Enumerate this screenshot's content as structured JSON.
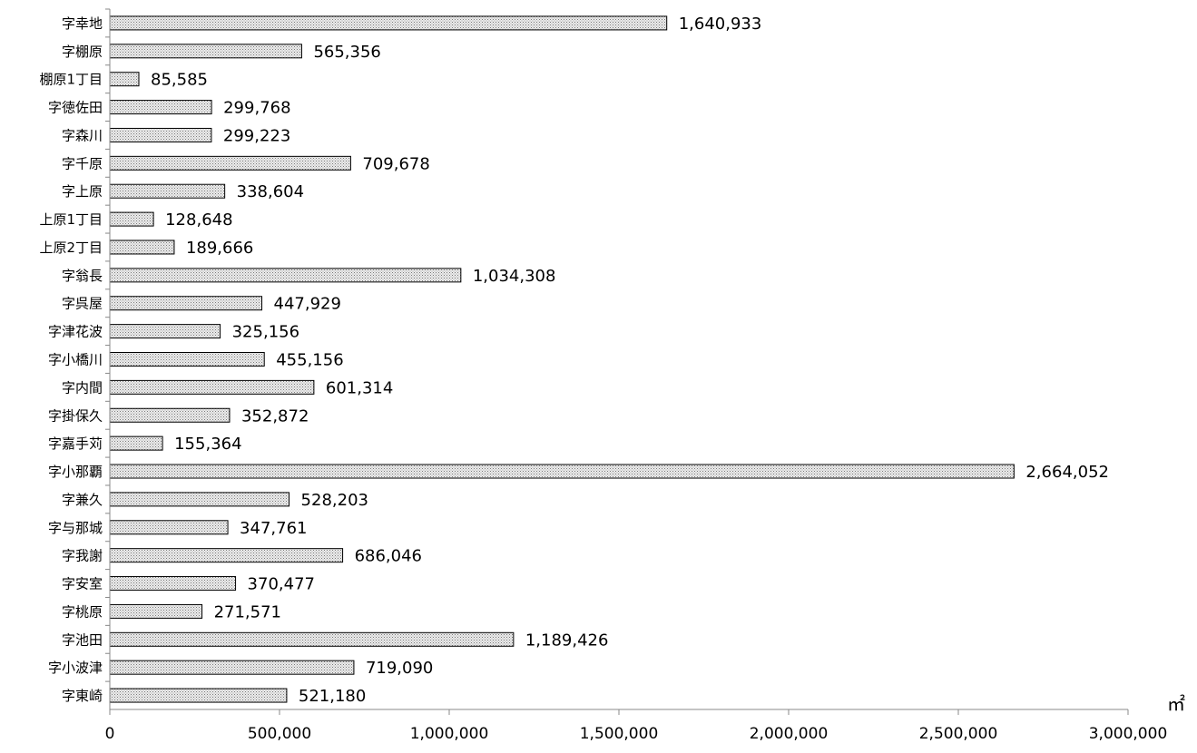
{
  "chart_data": {
    "type": "bar",
    "orientation": "horizontal",
    "categories": [
      "字幸地",
      "字棚原",
      "棚原1丁目",
      "字徳佐田",
      "字森川",
      "字千原",
      "字上原",
      "上原1丁目",
      "上原2丁目",
      "字翁長",
      "字呉屋",
      "字津花波",
      "字小橋川",
      "字内間",
      "字掛保久",
      "字嘉手苅",
      "字小那覇",
      "字兼久",
      "字与那城",
      "字我謝",
      "字安室",
      "字桃原",
      "字池田",
      "字小波津",
      "字東崎"
    ],
    "values": [
      1640933,
      565356,
      85585,
      299768,
      299223,
      709678,
      338604,
      128648,
      189666,
      1034308,
      447929,
      325156,
      455156,
      601314,
      352872,
      155364,
      2664052,
      528203,
      347761,
      686046,
      370477,
      271571,
      1189426,
      719090,
      521180
    ],
    "value_labels": [
      "1,640,933",
      "565,356",
      "85,585",
      "299,768",
      "299,223",
      "709,678",
      "338,604",
      "128,648",
      "189,666",
      "1,034,308",
      "447,929",
      "325,156",
      "455,156",
      "601,314",
      "352,872",
      "155,364",
      "2,664,052",
      "528,203",
      "347,761",
      "686,046",
      "370,477",
      "271,571",
      "1,189,426",
      "719,090",
      "521,180"
    ],
    "xlim": [
      0,
      3000000
    ],
    "ticks": [
      0,
      500000,
      1000000,
      1500000,
      2000000,
      2500000,
      3000000
    ],
    "tick_labels": [
      "0",
      "500,000",
      "1,000,000",
      "1,500,000",
      "2,000,000",
      "2,500,000",
      "3,000,000"
    ],
    "unit": "㎡",
    "bar_fill": "#d9d9d9",
    "bar_pattern": "dotted",
    "grid": false,
    "legend": "none",
    "title": "",
    "xlabel": "",
    "ylabel": ""
  }
}
